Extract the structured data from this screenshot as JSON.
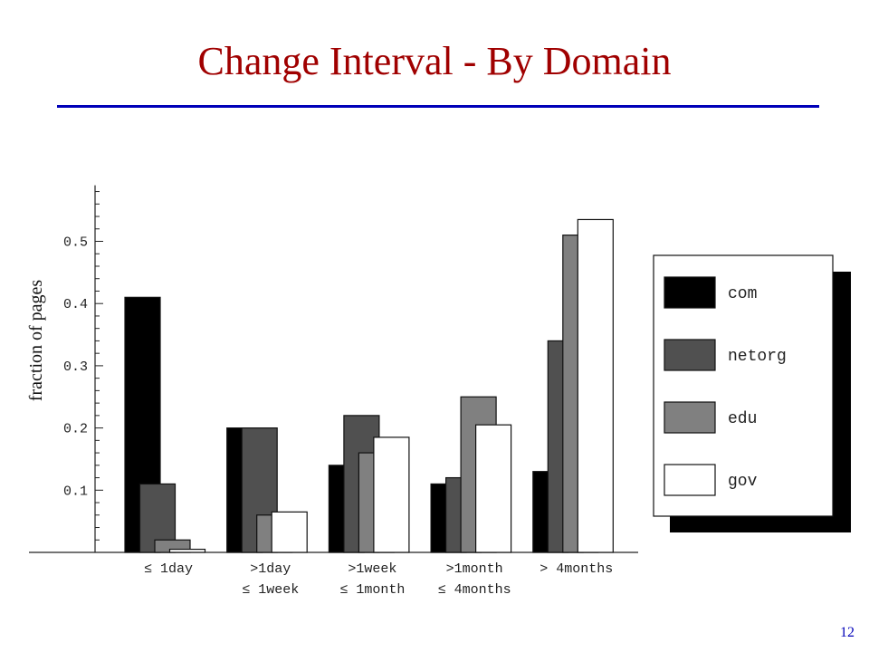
{
  "slide": {
    "title": "Change Interval - By Domain",
    "page_number": "12"
  },
  "colors": {
    "title": "#a00000",
    "rule": "#0000b8",
    "com": "#000000",
    "netorg": "#505050",
    "edu": "#808080",
    "gov": "#ffffff"
  },
  "chart_data": {
    "type": "bar",
    "title": "",
    "xlabel": "",
    "ylabel": "fraction of pages",
    "ylim": [
      0,
      0.59
    ],
    "yticks": [
      "0.1",
      "0.2",
      "0.3",
      "0.4",
      "0.5"
    ],
    "categories": [
      [
        "≤ 1day",
        ""
      ],
      [
        ">1day",
        "≤ 1week"
      ],
      [
        ">1week",
        "≤ 1month"
      ],
      [
        ">1month",
        "≤ 4months"
      ],
      [
        "> 4months",
        ""
      ]
    ],
    "series": [
      {
        "name": "com",
        "color": "#000000",
        "values": [
          0.41,
          0.2,
          0.14,
          0.11,
          0.13
        ]
      },
      {
        "name": "netorg",
        "color": "#505050",
        "values": [
          0.11,
          0.2,
          0.22,
          0.12,
          0.34
        ]
      },
      {
        "name": "edu",
        "color": "#808080",
        "values": [
          0.02,
          0.06,
          0.16,
          0.25,
          0.51
        ]
      },
      {
        "name": "gov",
        "color": "#ffffff",
        "values": [
          0.005,
          0.065,
          0.185,
          0.205,
          0.535
        ]
      }
    ],
    "legend": "right",
    "grid": false
  }
}
